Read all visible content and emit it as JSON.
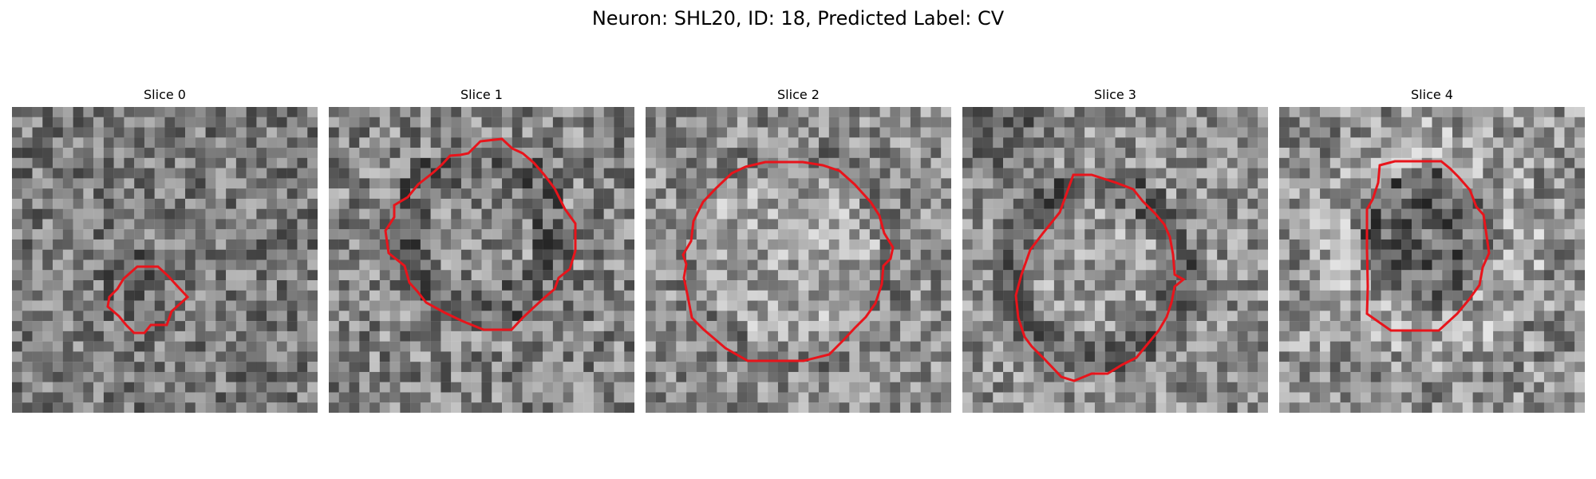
{
  "figure": {
    "title": "Neuron: SHL20, ID: 18, Predicted Label: CV"
  },
  "colors": {
    "contour": "#e8141b",
    "background": "#ffffff",
    "image_colormap": "gray"
  },
  "panels": [
    {
      "title": "Slice 0",
      "image": "grayscale noise patch with small red contour in center-left",
      "seed": 11,
      "base_level": 0.48,
      "contrast": 0.3,
      "contour": [
        [
          140,
          215
        ],
        [
          157,
          200
        ],
        [
          183,
          200
        ],
        [
          196,
          212
        ],
        [
          205,
          222
        ],
        [
          220,
          238
        ],
        [
          209,
          248
        ],
        [
          200,
          256
        ],
        [
          194,
          273
        ],
        [
          174,
          273
        ],
        [
          166,
          283
        ],
        [
          153,
          283
        ],
        [
          143,
          273
        ],
        [
          134,
          262
        ],
        [
          120,
          250
        ],
        [
          122,
          238
        ],
        [
          132,
          228
        ]
      ]
    },
    {
      "title": "Slice 1",
      "image": "grayscale noise patch with large ring-shaped cell outlined in red",
      "seed": 23,
      "base_level": 0.52,
      "contrast": 0.32,
      "contour": [
        [
          175,
          58
        ],
        [
          190,
          43
        ],
        [
          217,
          40
        ],
        [
          230,
          52
        ],
        [
          243,
          58
        ],
        [
          257,
          70
        ],
        [
          270,
          85
        ],
        [
          283,
          102
        ],
        [
          296,
          128
        ],
        [
          309,
          146
        ],
        [
          309,
          180
        ],
        [
          302,
          203
        ],
        [
          288,
          214
        ],
        [
          283,
          228
        ],
        [
          270,
          239
        ],
        [
          258,
          250
        ],
        [
          243,
          264
        ],
        [
          229,
          279
        ],
        [
          194,
          279
        ],
        [
          167,
          268
        ],
        [
          146,
          258
        ],
        [
          122,
          245
        ],
        [
          111,
          231
        ],
        [
          101,
          220
        ],
        [
          95,
          199
        ],
        [
          75,
          183
        ],
        [
          71,
          155
        ],
        [
          82,
          138
        ],
        [
          82,
          123
        ],
        [
          99,
          113
        ],
        [
          112,
          97
        ],
        [
          131,
          82
        ],
        [
          142,
          72
        ],
        [
          152,
          61
        ],
        [
          165,
          60
        ]
      ]
    },
    {
      "title": "Slice 2",
      "image": "grayscale noise patch with bright cell body outlined in red",
      "seed": 37,
      "base_level": 0.55,
      "contrast": 0.3,
      "contour": [
        [
          125,
          75
        ],
        [
          150,
          69
        ],
        [
          197,
          69
        ],
        [
          222,
          73
        ],
        [
          243,
          80
        ],
        [
          262,
          97
        ],
        [
          282,
          119
        ],
        [
          293,
          136
        ],
        [
          299,
          158
        ],
        [
          310,
          176
        ],
        [
          307,
          190
        ],
        [
          298,
          199
        ],
        [
          296,
          222
        ],
        [
          288,
          246
        ],
        [
          276,
          263
        ],
        [
          262,
          277
        ],
        [
          248,
          292
        ],
        [
          230,
          310
        ],
        [
          198,
          318
        ],
        [
          128,
          318
        ],
        [
          100,
          302
        ],
        [
          73,
          279
        ],
        [
          58,
          264
        ],
        [
          53,
          238
        ],
        [
          48,
          214
        ],
        [
          51,
          197
        ],
        [
          47,
          185
        ],
        [
          57,
          168
        ],
        [
          60,
          143
        ],
        [
          72,
          119
        ],
        [
          88,
          102
        ],
        [
          108,
          83
        ]
      ]
    },
    {
      "title": "Slice 3",
      "image": "grayscale noise patch with dark ring around cell outlined in red",
      "seed": 53,
      "base_level": 0.56,
      "contrast": 0.3,
      "contour": [
        [
          139,
          85
        ],
        [
          162,
          85
        ],
        [
          193,
          95
        ],
        [
          214,
          103
        ],
        [
          226,
          118
        ],
        [
          242,
          134
        ],
        [
          253,
          147
        ],
        [
          260,
          163
        ],
        [
          264,
          185
        ],
        [
          266,
          210
        ],
        [
          277,
          216
        ],
        [
          266,
          225
        ],
        [
          262,
          245
        ],
        [
          256,
          263
        ],
        [
          246,
          280
        ],
        [
          232,
          297
        ],
        [
          218,
          314
        ],
        [
          200,
          323
        ],
        [
          182,
          334
        ],
        [
          162,
          334
        ],
        [
          140,
          343
        ],
        [
          124,
          338
        ],
        [
          103,
          316
        ],
        [
          87,
          300
        ],
        [
          78,
          288
        ],
        [
          70,
          264
        ],
        [
          67,
          236
        ],
        [
          74,
          210
        ],
        [
          85,
          179
        ],
        [
          101,
          158
        ],
        [
          122,
          132
        ],
        [
          130,
          110
        ]
      ]
    },
    {
      "title": "Slice 4",
      "image": "grayscale noise patch with dark cell body outlined in red",
      "seed": 71,
      "base_level": 0.57,
      "contrast": 0.33,
      "contour": [
        [
          126,
          73
        ],
        [
          145,
          68
        ],
        [
          203,
          68
        ],
        [
          214,
          77
        ],
        [
          225,
          88
        ],
        [
          239,
          104
        ],
        [
          247,
          125
        ],
        [
          256,
          135
        ],
        [
          259,
          155
        ],
        [
          263,
          183
        ],
        [
          255,
          201
        ],
        [
          251,
          223
        ],
        [
          238,
          241
        ],
        [
          223,
          259
        ],
        [
          200,
          280
        ],
        [
          140,
          280
        ],
        [
          120,
          266
        ],
        [
          110,
          259
        ],
        [
          111,
          225
        ],
        [
          110,
          178
        ],
        [
          110,
          128
        ],
        [
          117,
          116
        ],
        [
          124,
          95
        ]
      ]
    }
  ]
}
